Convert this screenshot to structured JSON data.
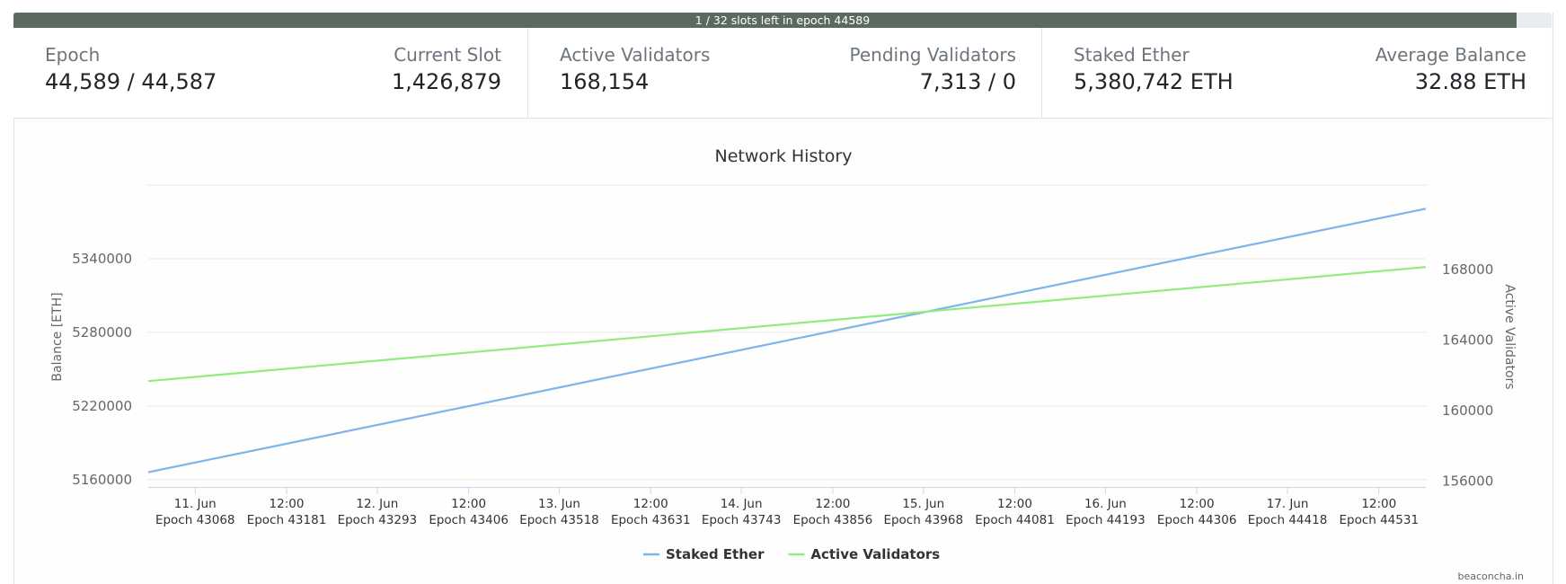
{
  "progress": {
    "text": "1 / 32 slots left in epoch 44589",
    "fraction": 0.977,
    "color": "#5b6a60"
  },
  "stats": {
    "epoch": {
      "label": "Epoch",
      "value": "44,589 / 44,587"
    },
    "current_slot": {
      "label": "Current Slot",
      "value": "1,426,879"
    },
    "active_validators": {
      "label": "Active Validators",
      "value": "168,154"
    },
    "pending_validators": {
      "label": "Pending Validators",
      "value": "7,313 / 0"
    },
    "staked_ether": {
      "label": "Staked Ether",
      "value": "5,380,742 ETH"
    },
    "average_balance": {
      "label": "Average Balance",
      "value": "32.88 ETH"
    }
  },
  "credit": "beaconcha.in",
  "chart_data": {
    "type": "line",
    "title": "Network History",
    "grid": true,
    "legend_position": "bottom-center",
    "x_ticks": [
      {
        "date": "11. Jun",
        "epoch": "Epoch 43068"
      },
      {
        "date": "12:00",
        "epoch": "Epoch 43181"
      },
      {
        "date": "12. Jun",
        "epoch": "Epoch 43293"
      },
      {
        "date": "12:00",
        "epoch": "Epoch 43406"
      },
      {
        "date": "13. Jun",
        "epoch": "Epoch 43518"
      },
      {
        "date": "12:00",
        "epoch": "Epoch 43631"
      },
      {
        "date": "14. Jun",
        "epoch": "Epoch 43743"
      },
      {
        "date": "12:00",
        "epoch": "Epoch 43856"
      },
      {
        "date": "15. Jun",
        "epoch": "Epoch 43968"
      },
      {
        "date": "12:00",
        "epoch": "Epoch 44081"
      },
      {
        "date": "16. Jun",
        "epoch": "Epoch 44193"
      },
      {
        "date": "12:00",
        "epoch": "Epoch 44306"
      },
      {
        "date": "17. Jun",
        "epoch": "Epoch 44418"
      },
      {
        "date": "12:00",
        "epoch": "Epoch 44531"
      }
    ],
    "x_epoch_range": [
      43010,
      44589
    ],
    "y_left": {
      "label": "Balance [ETH]",
      "ticks": [
        5160000,
        5220000,
        5280000,
        5340000
      ],
      "range": [
        5154000,
        5400000
      ]
    },
    "y_right": {
      "label": "Active Validators",
      "ticks": [
        156000,
        160000,
        164000,
        168000
      ],
      "range": [
        155680,
        172800
      ]
    },
    "series": [
      {
        "name": "Staked Ether",
        "axis": "left",
        "color": "#7cb5ec",
        "points": [
          [
            43010,
            5166000
          ],
          [
            44589,
            5380742
          ]
        ]
      },
      {
        "name": "Active Validators",
        "axis": "right",
        "color": "#90ed7d",
        "points": [
          [
            43010,
            161680
          ],
          [
            44589,
            168154
          ]
        ]
      }
    ]
  }
}
